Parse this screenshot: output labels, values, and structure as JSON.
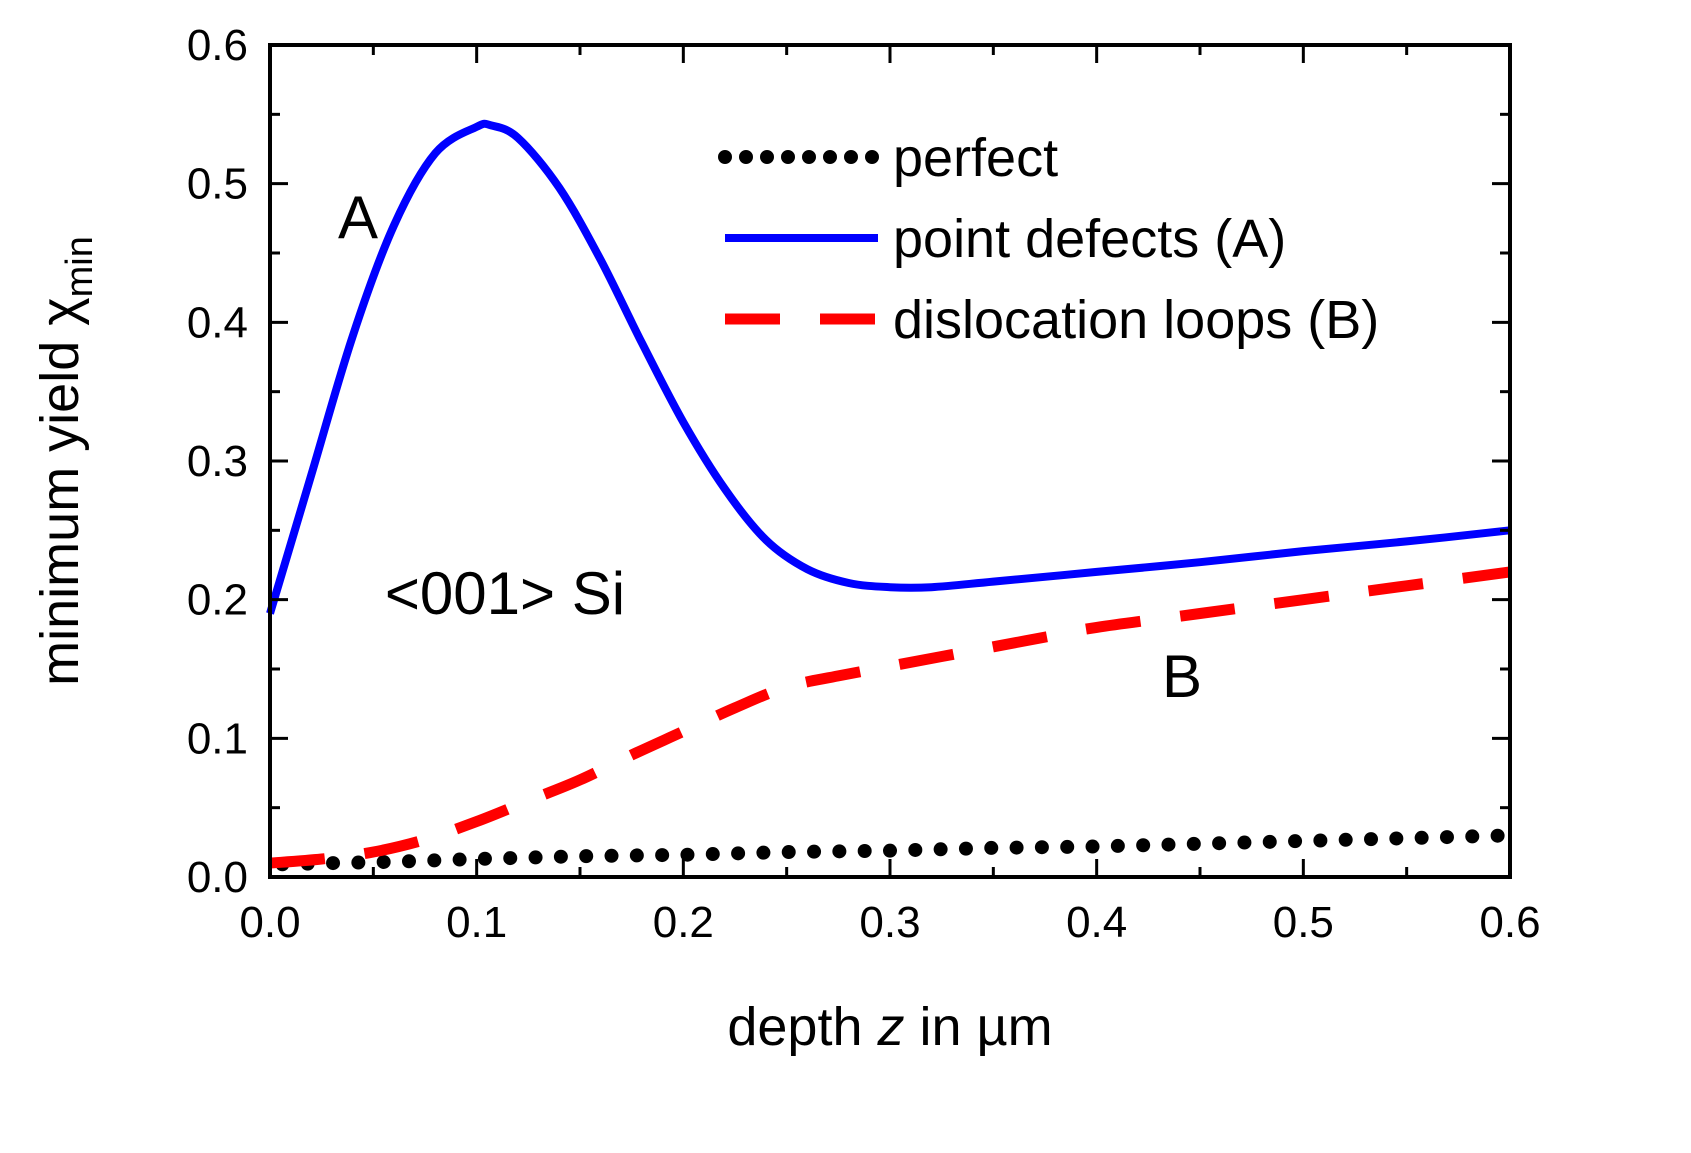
{
  "chart_data": {
    "type": "line",
    "title": "",
    "xlabel_prefix": "depth ",
    "xlabel_var": "z",
    "xlabel_suffix": " in µm",
    "ylabel_main": "minimum yield  χ",
    "ylabel_sub": "min",
    "xlim": [
      0.0,
      0.6
    ],
    "ylim": [
      0.0,
      0.6
    ],
    "xticks": [
      "0.0",
      "0.1",
      "0.2",
      "0.3",
      "0.4",
      "0.5",
      "0.6"
    ],
    "yticks": [
      "0.0",
      "0.1",
      "0.2",
      "0.3",
      "0.4",
      "0.5",
      "0.6"
    ],
    "xtick_values": [
      0.0,
      0.1,
      0.2,
      0.3,
      0.4,
      0.5,
      0.6
    ],
    "ytick_values": [
      0.0,
      0.1,
      0.2,
      0.3,
      0.4,
      0.5,
      0.6
    ],
    "legend_position": "top-right",
    "annotations": {
      "a_label": "A",
      "b_label": "B",
      "crystal_label": "<001> Si"
    },
    "series": [
      {
        "name": "perfect",
        "style": "dotted",
        "color": "#000000",
        "x": [
          0.0,
          0.06,
          0.1,
          0.15,
          0.2,
          0.25,
          0.3,
          0.35,
          0.4,
          0.45,
          0.5,
          0.55,
          0.6
        ],
        "y": [
          0.009,
          0.011,
          0.013,
          0.015,
          0.016,
          0.018,
          0.019,
          0.021,
          0.022,
          0.024,
          0.026,
          0.028,
          0.03
        ]
      },
      {
        "name": "point defects (A)",
        "style": "solid",
        "color": "#0000ff",
        "x": [
          0.0,
          0.02,
          0.04,
          0.06,
          0.08,
          0.1,
          0.107,
          0.12,
          0.14,
          0.16,
          0.18,
          0.2,
          0.22,
          0.24,
          0.26,
          0.28,
          0.3,
          0.32,
          0.35,
          0.4,
          0.45,
          0.5,
          0.55,
          0.6
        ],
        "y": [
          0.19,
          0.29,
          0.39,
          0.47,
          0.522,
          0.541,
          0.542,
          0.533,
          0.497,
          0.445,
          0.385,
          0.328,
          0.28,
          0.243,
          0.222,
          0.212,
          0.209,
          0.209,
          0.213,
          0.22,
          0.227,
          0.235,
          0.242,
          0.25
        ]
      },
      {
        "name": "dislocation loops (B)",
        "style": "dashed",
        "color": "#ff0000",
        "x": [
          0.0,
          0.025,
          0.05,
          0.075,
          0.1,
          0.125,
          0.15,
          0.175,
          0.2,
          0.225,
          0.25,
          0.275,
          0.3,
          0.325,
          0.35,
          0.375,
          0.4,
          0.45,
          0.5,
          0.55,
          0.6
        ],
        "y": [
          0.01,
          0.013,
          0.018,
          0.027,
          0.04,
          0.055,
          0.07,
          0.088,
          0.105,
          0.122,
          0.137,
          0.145,
          0.152,
          0.159,
          0.166,
          0.173,
          0.18,
          0.19,
          0.2,
          0.21,
          0.22
        ]
      }
    ]
  }
}
